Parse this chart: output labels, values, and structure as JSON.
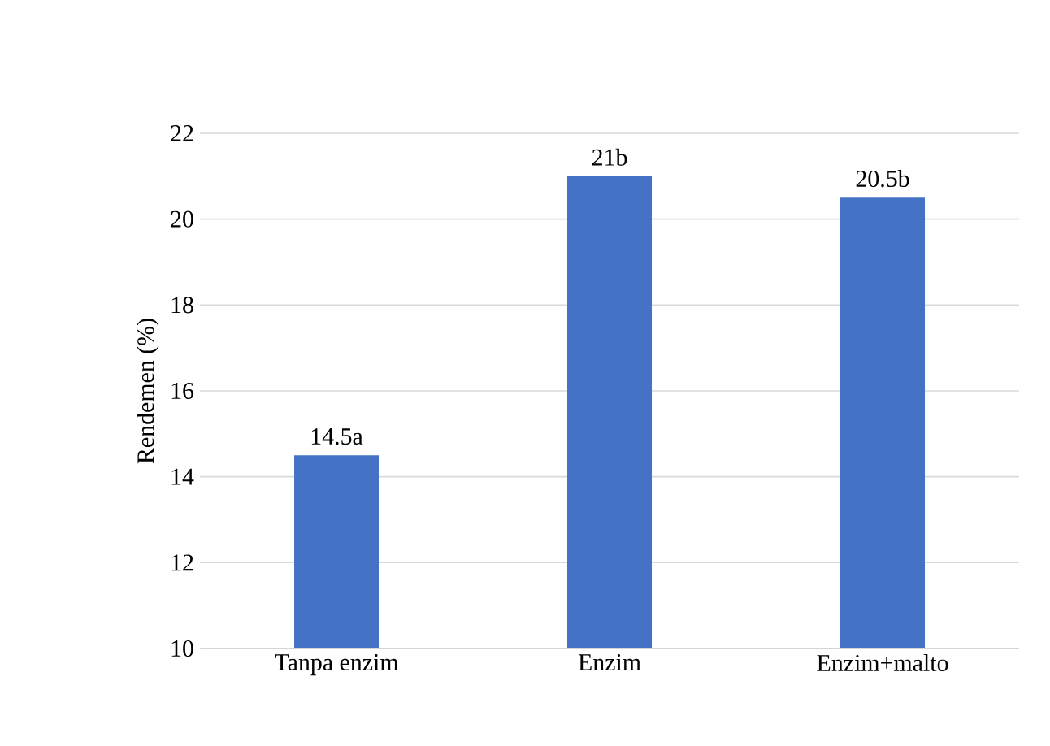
{
  "chart_data": {
    "type": "bar",
    "ylabel": "Rendemen (%)",
    "categories": [
      "Tanpa enzim",
      "Enzim",
      "Enzim+malto"
    ],
    "values": [
      14.5,
      21,
      20.5
    ],
    "value_labels": [
      "14.5a",
      "21b",
      "20.5b"
    ],
    "color": "#4472c4",
    "ylim": [
      10,
      22
    ],
    "yticks": [
      10,
      12,
      14,
      16,
      18,
      20,
      22
    ],
    "grid": "y"
  }
}
